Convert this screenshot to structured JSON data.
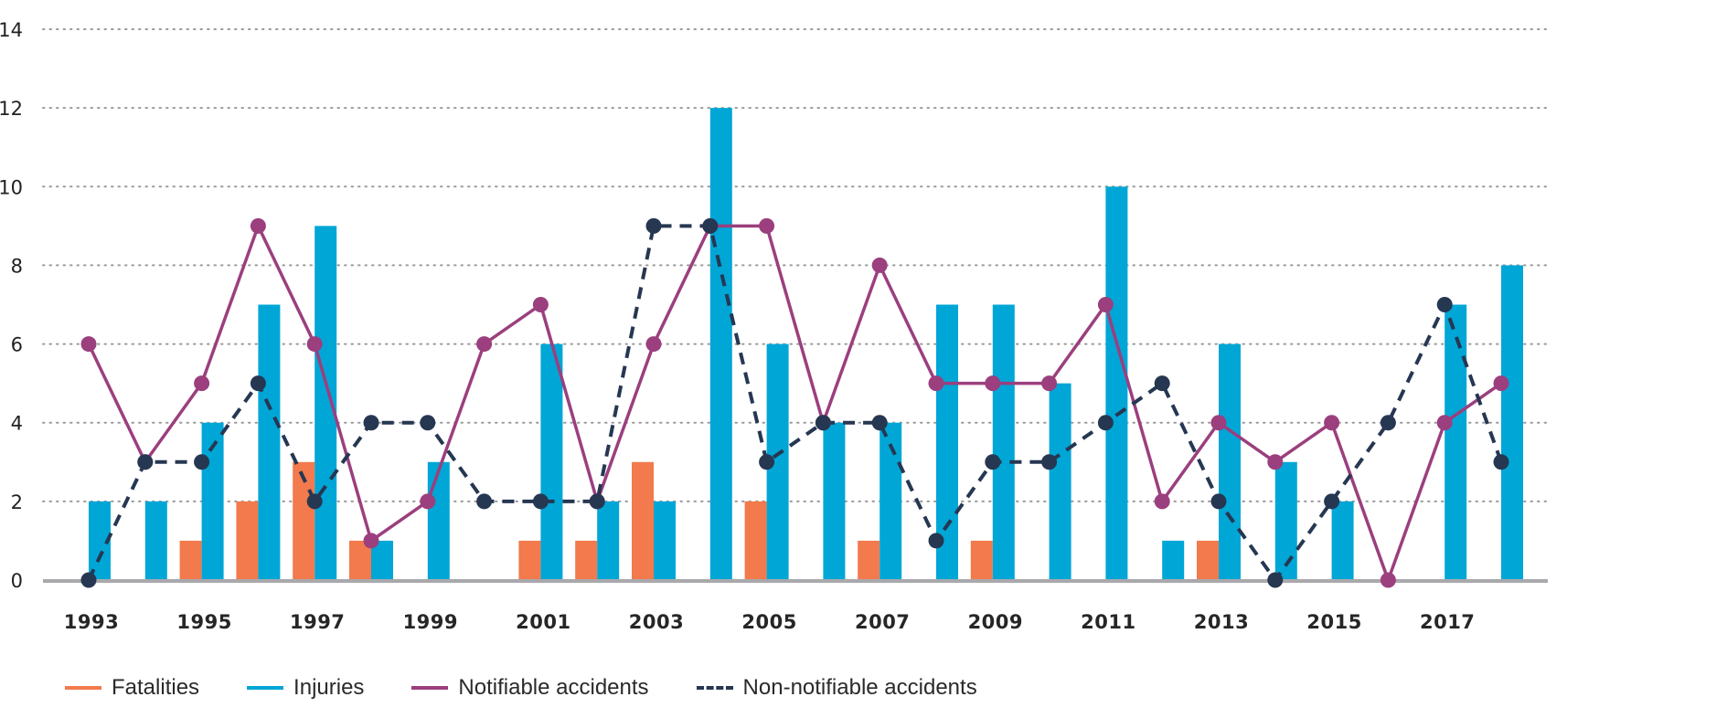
{
  "chart_data": {
    "type": "bar",
    "title": "",
    "xlabel": "",
    "ylabel": "",
    "ylim": [
      0,
      14
    ],
    "yticks": [
      0,
      2,
      4,
      6,
      8,
      10,
      12,
      14
    ],
    "grid": true,
    "legend_position": "bottom-left",
    "categories": [
      1993,
      1994,
      1995,
      1996,
      1997,
      1998,
      1999,
      2000,
      2001,
      2002,
      2003,
      2004,
      2005,
      2006,
      2007,
      2008,
      2009,
      2010,
      2011,
      2012,
      2013,
      2014,
      2015,
      2016,
      2017,
      2018
    ],
    "xtick_labels": [
      "1993",
      "1995",
      "1997",
      "1999",
      "2001",
      "2003",
      "2005",
      "2007",
      "2009",
      "2011",
      "2013",
      "2015",
      "2017"
    ],
    "series": [
      {
        "name": "Fatalities",
        "kind": "bar",
        "color": "#F27A4C",
        "values": [
          0,
          0,
          1,
          2,
          3,
          1,
          0,
          0,
          1,
          1,
          3,
          0,
          2,
          0,
          1,
          0,
          1,
          0,
          0,
          0,
          1,
          0,
          0,
          0,
          0,
          0
        ]
      },
      {
        "name": "Injuries",
        "kind": "bar",
        "color": "#00A6D6",
        "values": [
          2,
          2,
          4,
          7,
          9,
          1,
          3,
          0,
          6,
          2,
          2,
          12,
          6,
          4,
          4,
          7,
          7,
          5,
          10,
          1,
          6,
          3,
          2,
          0,
          7,
          8
        ]
      },
      {
        "name": "Notifiable accidents",
        "kind": "line",
        "style": "solid",
        "color": "#9B3F7E",
        "values": [
          6,
          3,
          5,
          9,
          6,
          1,
          2,
          6,
          7,
          2,
          6,
          9,
          9,
          4,
          8,
          5,
          5,
          5,
          7,
          2,
          4,
          3,
          4,
          0,
          4,
          5
        ]
      },
      {
        "name": "Non-notifiable accidents",
        "kind": "line",
        "style": "dashed",
        "color": "#263752",
        "values": [
          0,
          3,
          3,
          5,
          2,
          4,
          4,
          2,
          2,
          2,
          9,
          9,
          3,
          4,
          4,
          1,
          3,
          3,
          4,
          5,
          2,
          0,
          2,
          4,
          7,
          3
        ]
      }
    ]
  },
  "legend": [
    {
      "label": "Fatalities",
      "color": "#F27A4C",
      "style": "solid"
    },
    {
      "label": "Injuries",
      "color": "#00A6D6",
      "style": "solid"
    },
    {
      "label": "Notifiable accidents",
      "color": "#9B3F7E",
      "style": "solid"
    },
    {
      "label": "Non-notifiable accidents",
      "color": "#263752",
      "style": "dashed"
    }
  ],
  "colors": {
    "axis": "#A9A9AD",
    "grid": "#9A9A9A",
    "text": "#222222"
  }
}
